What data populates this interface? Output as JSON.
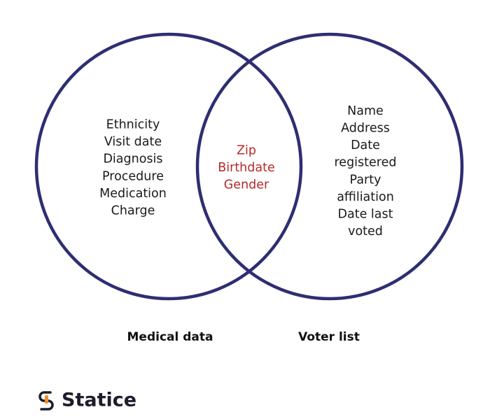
{
  "sets": [
    {
      "label": "Medical data",
      "items": [
        "Ethnicity",
        "Visit date",
        "Diagnosis",
        "Procedure",
        "Medication",
        "Charge"
      ]
    },
    {
      "label": "Voter list",
      "items": [
        "Name",
        "Address",
        "Date",
        "registered",
        "Party",
        "affiliation",
        "Date last",
        "voted"
      ]
    }
  ],
  "intersection": {
    "items": [
      "Zip",
      "Birthdate",
      "Gender"
    ]
  },
  "logo": {
    "text": "Statice"
  }
}
